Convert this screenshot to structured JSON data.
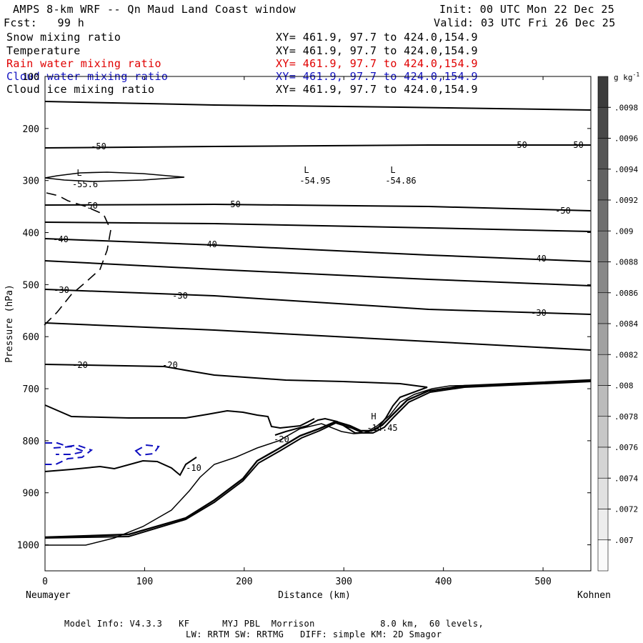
{
  "header": {
    "title": "AMPS 8-km WRF -- Qn Maud Land Coast window",
    "init": "Init: 00 UTC Mon 22 Dec 25",
    "fcst": "Fcst:   99 h",
    "valid": "Valid: 03 UTC Fri 26 Dec 25"
  },
  "fields": [
    {
      "name": "Snow mixing ratio",
      "xy": "XY= 461.9, 97.7 to 424.0,154.9",
      "color": "#000000"
    },
    {
      "name": "Temperature",
      "xy": "XY= 461.9, 97.7 to 424.0,154.9",
      "color": "#000000"
    },
    {
      "name": "Rain water mixing ratio",
      "xy": "XY= 461.9, 97.7 to 424.0,154.9",
      "color": "#e00000"
    },
    {
      "name": "Cloud water mixing ratio",
      "xy": "XY= 461.9, 97.7 to 424.0,154.9",
      "color": "#1010c0"
    },
    {
      "name": "Cloud ice mixing ratio",
      "xy": "XY= 461.9, 97.7 to 424.0,154.9",
      "color": "#000000"
    }
  ],
  "chart_data": {
    "type": "contour-cross-section",
    "xlabel": "Distance (km)",
    "ylabel": "Pressure (hPa)",
    "xlim": [
      0,
      548
    ],
    "ylim": [
      1050,
      100
    ],
    "x_ticks": [
      0,
      100,
      200,
      300,
      400,
      500
    ],
    "y_ticks": [
      100,
      200,
      300,
      400,
      500,
      600,
      700,
      800,
      900,
      1000
    ],
    "x_start_label": "Neumayer",
    "x_end_label": "Kohnen",
    "temperature_labels": [
      "-50",
      "-50",
      "-50",
      "-50",
      "-50",
      "-50",
      "-40",
      "-40",
      "-40",
      "-30",
      "-30",
      "-30",
      "-20",
      "-20",
      "-20",
      "-10"
    ],
    "extrema": [
      {
        "kind": "L",
        "value": "-55.6"
      },
      {
        "kind": "L",
        "value": "-54.95"
      },
      {
        "kind": "L",
        "value": "-54.86"
      },
      {
        "kind": "H",
        "value": "-14.45"
      }
    ],
    "colorbar": {
      "unit": "g kg-1",
      "ticks": [
        ".0098",
        ".0096",
        ".0094",
        ".0092",
        ".009",
        ".0088",
        ".0086",
        ".0084",
        ".0082",
        ".008",
        ".0078",
        ".0076",
        ".0074",
        ".0072",
        ".007"
      ]
    }
  },
  "footer": {
    "line1": "Model Info: V4.3.3   KF      MYJ PBL  Morrison            8.0 km,  60 levels,",
    "line2": "LW: RRTM SW: RRTMG   DIFF: simple KM: 2D Smagor"
  }
}
